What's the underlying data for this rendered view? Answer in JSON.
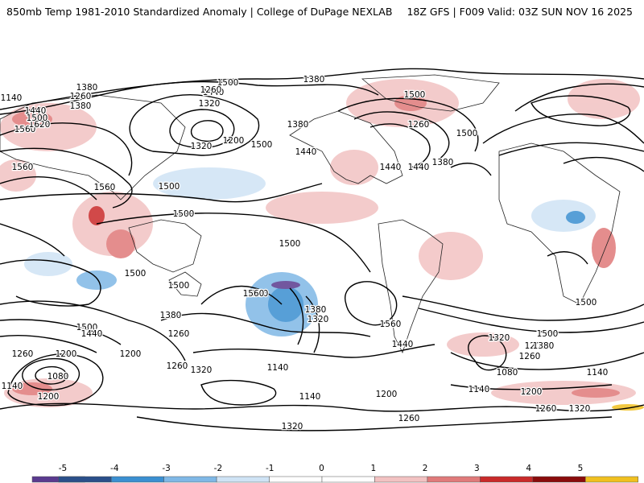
{
  "header": {
    "left": "850mb Temp 1981-2010 Standardized Anomaly | College of DuPage NEXLAB",
    "right": "18Z GFS | F009 Valid: 03Z SUN NOV 16 2025"
  },
  "colorbar": {
    "ticks": [
      "-5",
      "-4",
      "-3",
      "-2",
      "-1",
      "0",
      "1",
      "2",
      "3",
      "4",
      "5"
    ],
    "colors": [
      "#5a3a8f",
      "#2a4f8a",
      "#3a8fd1",
      "#7fb8e6",
      "#cfe3f5",
      "#ffffff",
      "#ffffff",
      "#f2c2c2",
      "#e07a7a",
      "#c92a2a",
      "#8a0c0c",
      "#f0c020"
    ]
  },
  "contour_labels": [
    "1440",
    "1500",
    "1380",
    "1140",
    "1260",
    "1440",
    "1380",
    "1560",
    "1620",
    "1500",
    "1560",
    "1380",
    "1440",
    "1320",
    "1200",
    "1500",
    "1440",
    "1500",
    "1260",
    "1380",
    "1320",
    "1440",
    "1380",
    "1500",
    "1260",
    "1500",
    "1440",
    "1560",
    "1500",
    "1500",
    "1500",
    "1500",
    "1500",
    "1560",
    "1380",
    "1380",
    "1320",
    "1260",
    "1500",
    "1440",
    "1200",
    "1260",
    "1080",
    "1140",
    "1200",
    "1260",
    "1320",
    "1200",
    "1140",
    "1140",
    "1200",
    "1260",
    "1320",
    "1560",
    "1440",
    "1500",
    "1320",
    "1200",
    "1260",
    "1380",
    "1500",
    "1080",
    "1140",
    "1200",
    "1260",
    "1320",
    "1140"
  ]
}
